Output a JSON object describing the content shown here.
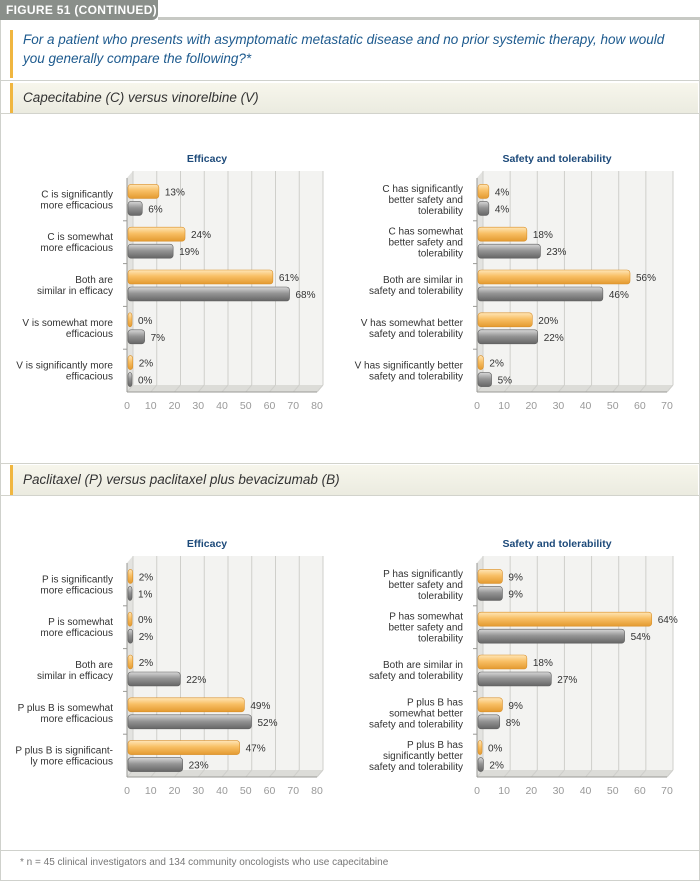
{
  "figure_label": "FIGURE 51 (CONTINUED)",
  "question": "For a patient who presents with asymptomatic metastatic disease and no prior systemic therapy, how would you generally compare the following?*",
  "sections": [
    {
      "title": "Capecitabine (C) versus vinorelbine (V)"
    },
    {
      "title": "Paclitaxel (P) versus paclitaxel plus bevacizumab (B)"
    }
  ],
  "footnote": "* n = 45 clinical investigators and 134 community oncologists who use capecitabine",
  "colors": {
    "series1": "#f6b75a",
    "series2": "#8e8e8e",
    "title": "#1d4a7a",
    "accent": "#f0b640"
  },
  "chart_data": [
    {
      "type": "bar",
      "orientation": "horizontal",
      "title": "Efficacy",
      "section": "Capecitabine (C) versus vinorelbine (V)",
      "categories": [
        [
          "C is significantly",
          "more efficacious"
        ],
        [
          "C is somewhat",
          "more efficacious"
        ],
        [
          "Both are",
          "similar in efficacy"
        ],
        [
          "V is somewhat more",
          "efficacious"
        ],
        [
          "V is significantly more",
          "efficacious"
        ]
      ],
      "series": [
        {
          "name": "Series 1 (orange)",
          "values": [
            13,
            24,
            61,
            0,
            2
          ]
        },
        {
          "name": "Series 2 (gray)",
          "values": [
            6,
            19,
            68,
            7,
            0
          ]
        }
      ],
      "xlim": [
        0,
        80
      ],
      "ticks": [
        0,
        10,
        20,
        30,
        40,
        50,
        60,
        70,
        80
      ]
    },
    {
      "type": "bar",
      "orientation": "horizontal",
      "title": "Safety and tolerability",
      "section": "Capecitabine (C) versus vinorelbine (V)",
      "categories": [
        [
          "C has significantly",
          "better safety and",
          "tolerability"
        ],
        [
          "C has somewhat",
          "better safety and",
          "tolerability"
        ],
        [
          "Both are similar in",
          "safety and tolerability"
        ],
        [
          "V has somewhat better",
          "safety and tolerability"
        ],
        [
          "V has significantly better",
          "safety and tolerability"
        ]
      ],
      "series": [
        {
          "name": "Series 1 (orange)",
          "values": [
            4,
            18,
            56,
            20,
            2
          ]
        },
        {
          "name": "Series 2 (gray)",
          "values": [
            4,
            23,
            46,
            22,
            5
          ]
        }
      ],
      "xlim": [
        0,
        70
      ],
      "ticks": [
        0,
        10,
        20,
        30,
        40,
        50,
        60,
        70
      ]
    },
    {
      "type": "bar",
      "orientation": "horizontal",
      "title": "Efficacy",
      "section": "Paclitaxel (P) versus paclitaxel plus bevacizumab (B)",
      "categories": [
        [
          "P is significantly",
          "more efficacious"
        ],
        [
          "P is somewhat",
          "more efficacious"
        ],
        [
          "Both are",
          "similar in efficacy"
        ],
        [
          "P plus B is somewhat",
          "more efficacious"
        ],
        [
          "P plus B is significant-",
          "ly more efficacious"
        ]
      ],
      "series": [
        {
          "name": "Series 1 (orange)",
          "values": [
            2,
            0,
            2,
            49,
            47
          ]
        },
        {
          "name": "Series 2 (gray)",
          "values": [
            1,
            2,
            22,
            52,
            23
          ]
        }
      ],
      "xlim": [
        0,
        80
      ],
      "ticks": [
        0,
        10,
        20,
        30,
        40,
        50,
        60,
        70,
        80
      ]
    },
    {
      "type": "bar",
      "orientation": "horizontal",
      "title": "Safety and tolerability",
      "section": "Paclitaxel (P) versus paclitaxel plus bevacizumab (B)",
      "categories": [
        [
          "P has significantly",
          "better safety and",
          "tolerability"
        ],
        [
          "P has somewhat",
          "better safety and",
          "tolerability"
        ],
        [
          "Both are similar in",
          "safety and tolerability"
        ],
        [
          "P plus B has",
          "somewhat better",
          "safety and tolerability"
        ],
        [
          "P plus B has",
          "significantly better",
          "safety and tolerability"
        ]
      ],
      "series": [
        {
          "name": "Series 1 (orange)",
          "values": [
            9,
            64,
            18,
            9,
            0
          ]
        },
        {
          "name": "Series 2 (gray)",
          "values": [
            9,
            54,
            27,
            8,
            2
          ]
        }
      ],
      "xlim": [
        0,
        70
      ],
      "ticks": [
        0,
        10,
        20,
        30,
        40,
        50,
        60,
        70
      ]
    }
  ]
}
